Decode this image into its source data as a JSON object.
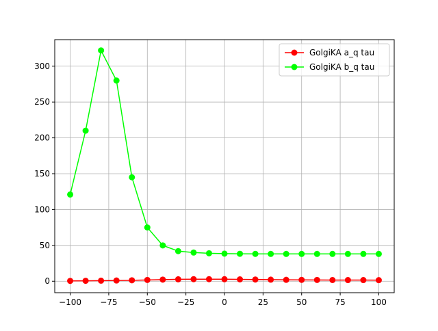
{
  "chart_data": {
    "type": "line",
    "title": "",
    "xlabel": "",
    "ylabel": "",
    "xlim": [
      -110,
      110
    ],
    "ylim": [
      -16,
      337
    ],
    "grid": true,
    "legend_position": "upper-right",
    "x": [
      -100,
      -90,
      -80,
      -70,
      -60,
      -50,
      -40,
      -30,
      -20,
      -10,
      0,
      10,
      20,
      30,
      40,
      50,
      60,
      70,
      80,
      90,
      100
    ],
    "xticks": [
      -100,
      -75,
      -50,
      -25,
      0,
      25,
      50,
      75,
      100
    ],
    "xtick_labels": [
      "−100",
      "−75",
      "−50",
      "−25",
      "0",
      "25",
      "50",
      "75",
      "100"
    ],
    "yticks": [
      0,
      50,
      100,
      150,
      200,
      250,
      300
    ],
    "ytick_labels": [
      "0",
      "50",
      "100",
      "150",
      "200",
      "250",
      "300"
    ],
    "series": [
      {
        "name": "GolgiKA a_q tau",
        "color": "#ff0000",
        "marker": "circle",
        "values": [
          0.5,
          0.6,
          0.8,
          1.0,
          1.3,
          1.8,
          2.3,
          2.7,
          2.9,
          2.9,
          2.8,
          2.6,
          2.4,
          2.2,
          2.0,
          1.9,
          1.8,
          1.7,
          1.6,
          1.6,
          1.5
        ]
      },
      {
        "name": "GolgiKA b_q tau",
        "color": "#00ff00",
        "marker": "circle",
        "values": [
          121,
          210,
          322,
          280,
          145,
          75,
          50,
          42,
          40,
          39,
          38.5,
          38.3,
          38.2,
          38.1,
          38.1,
          38.1,
          38.1,
          38.1,
          38.1,
          38.1,
          38.1
        ]
      }
    ]
  }
}
